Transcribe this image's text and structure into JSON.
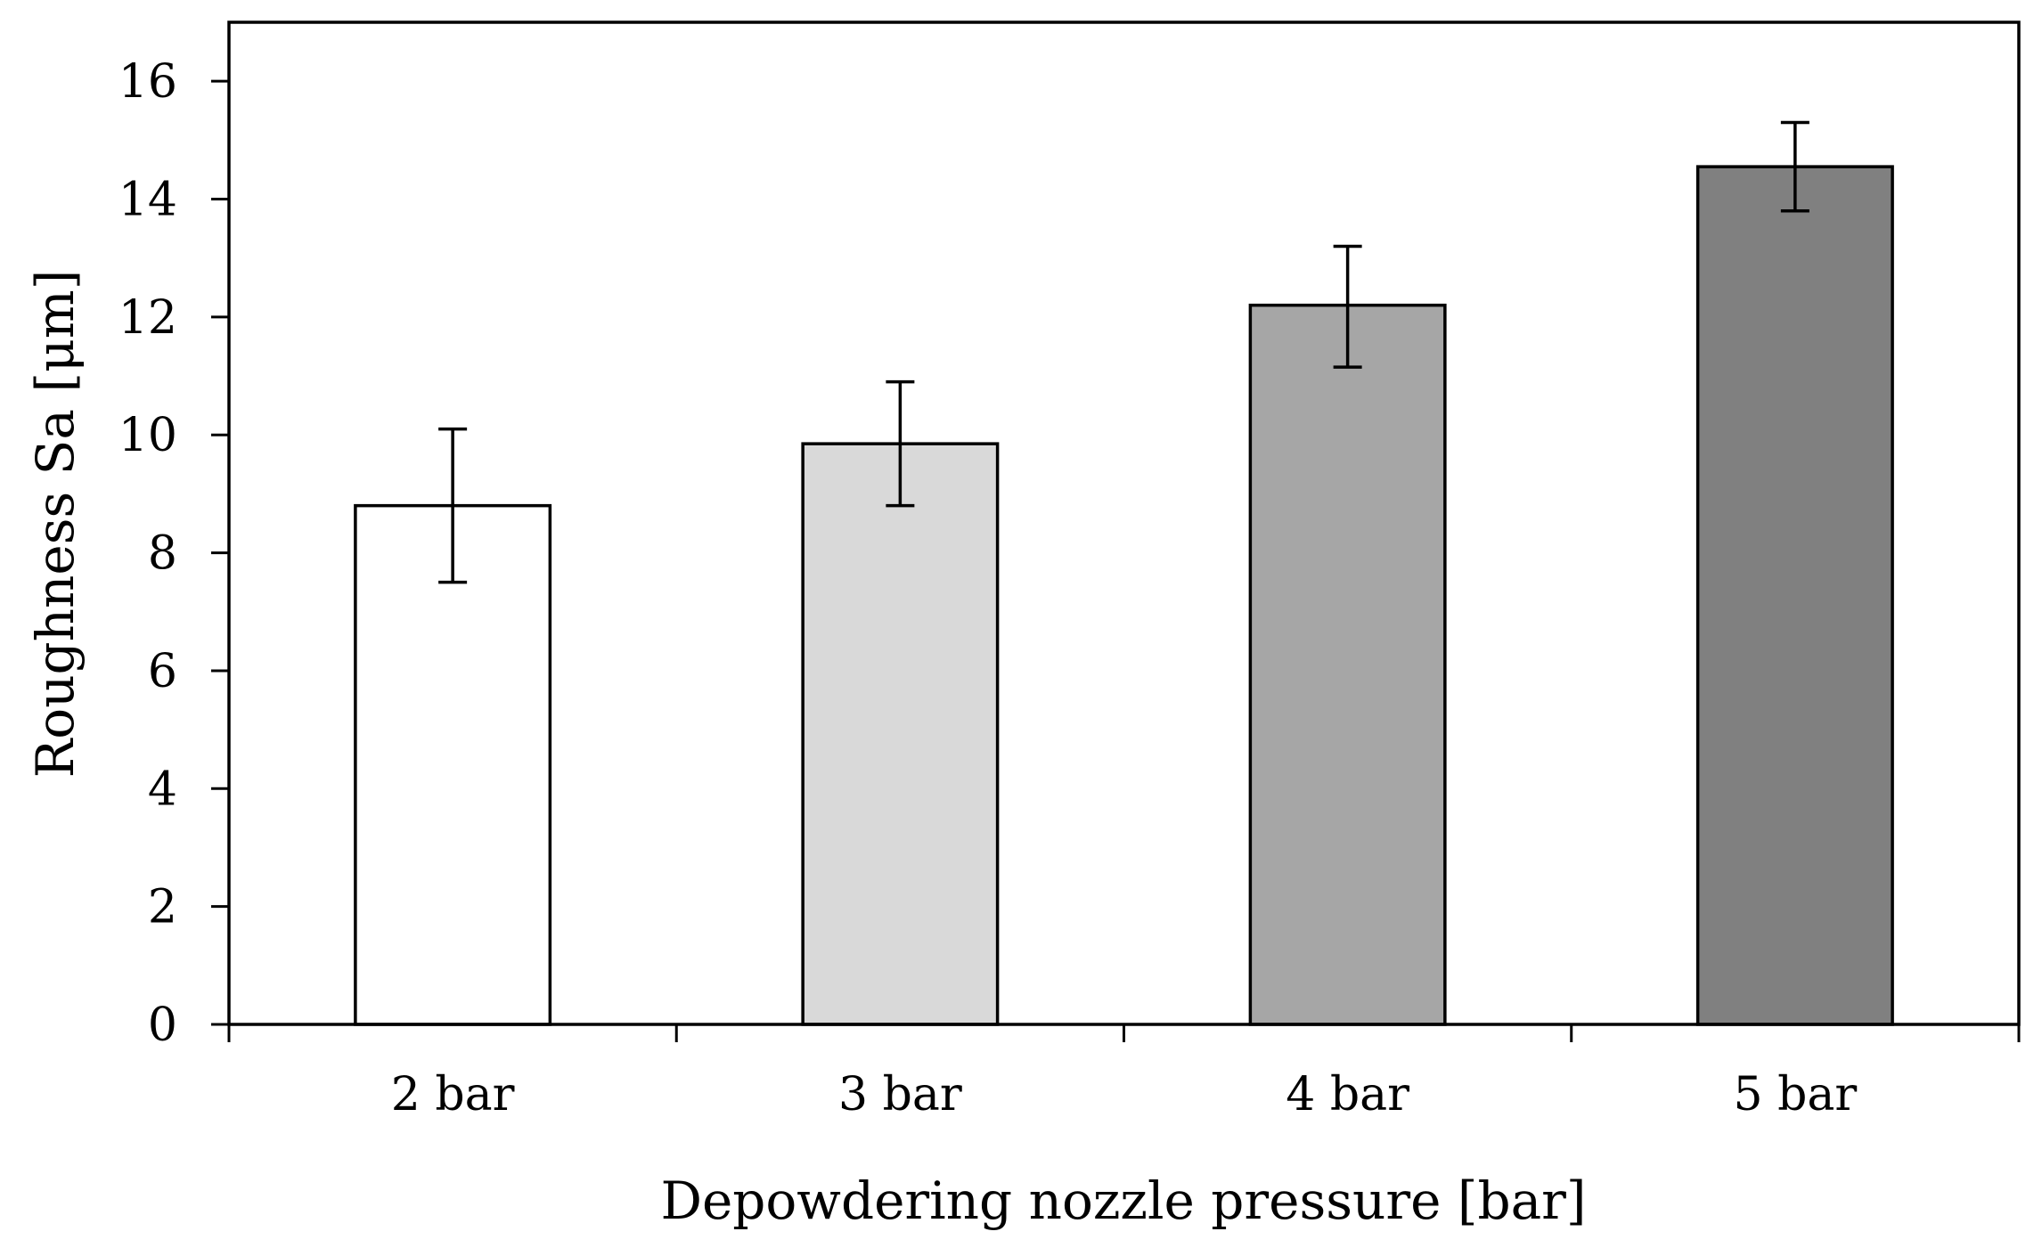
{
  "chart_data": {
    "type": "bar",
    "title": "",
    "xlabel": "Depowdering nozzle pressure [bar]",
    "ylabel": "Roughness Sa [μm]",
    "categories": [
      "2 bar",
      "3 bar",
      "4 bar",
      "5 bar"
    ],
    "values": [
      8.8,
      9.85,
      12.2,
      14.55
    ],
    "error_low": [
      7.5,
      8.8,
      11.15,
      13.8
    ],
    "error_high": [
      10.1,
      10.9,
      13.2,
      15.3
    ],
    "bar_colors": [
      "#ffffff",
      "#d9d9d9",
      "#a6a6a6",
      "#808080"
    ],
    "ylim": [
      0,
      17
    ],
    "yticks": [
      "0",
      "2",
      "4",
      "6",
      "8",
      "10",
      "12",
      "14",
      "16"
    ],
    "grid": false,
    "legend": "none"
  }
}
